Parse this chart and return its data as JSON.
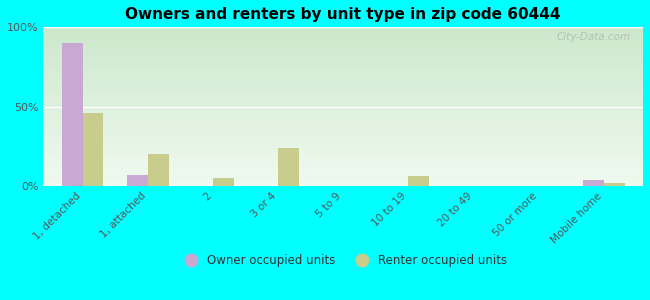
{
  "title": "Owners and renters by unit type in zip code 60444",
  "categories": [
    "1, detached",
    "1, attached",
    "2",
    "3 or 4",
    "5 to 9",
    "10 to 19",
    "20 to 49",
    "50 or more",
    "Mobile home"
  ],
  "owner_values": [
    90,
    7,
    0,
    0,
    0,
    0,
    0,
    0,
    4
  ],
  "renter_values": [
    46,
    20,
    5,
    24,
    0,
    6,
    0,
    0,
    2
  ],
  "owner_color": "#c9a8d4",
  "renter_color": "#c8cc8c",
  "bg_top_color": "#cce8cc",
  "bg_bottom_color": "#f0faf0",
  "outer_bg": "#00ffff",
  "ylim": [
    0,
    100
  ],
  "yticks": [
    0,
    50,
    100
  ],
  "ytick_labels": [
    "0%",
    "50%",
    "100%"
  ],
  "bar_width": 0.32,
  "legend_owner": "Owner occupied units",
  "legend_renter": "Renter occupied units",
  "watermark": "City-Data.com"
}
